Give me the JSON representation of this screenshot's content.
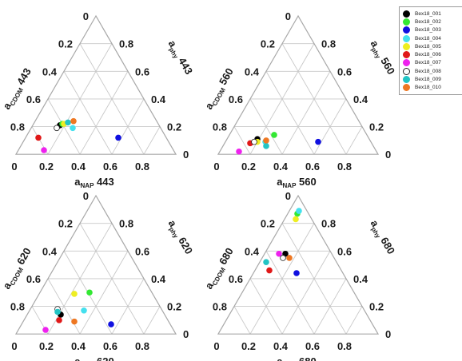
{
  "chart_data": [
    {
      "type": "ternary-scatter",
      "wavelength": "443",
      "axes": {
        "left": "a_CDOM 443",
        "right": "a_phy 443",
        "bottom": "a_NAP 443"
      },
      "left_ticks": [
        "0",
        "0.2",
        "0.4",
        "0.6",
        "0.8"
      ],
      "right_ticks": [
        "0.8",
        "0.6",
        "0.4",
        "0.2",
        "0"
      ],
      "bottom_ticks": [
        "0",
        "0.2",
        "0.4",
        "0.6",
        "0.8"
      ],
      "points": [
        {
          "series": "Bex18_001",
          "cdom": 0.62,
          "nap": 0.17,
          "phy": 0.21
        },
        {
          "series": "Bex18_002",
          "cdom": 0.6,
          "nap": 0.18,
          "phy": 0.22
        },
        {
          "series": "Bex18_003",
          "cdom": 0.3,
          "nap": 0.58,
          "phy": 0.12
        },
        {
          "series": "Bex18_004",
          "cdom": 0.55,
          "nap": 0.26,
          "phy": 0.19
        },
        {
          "series": "Bex18_005",
          "cdom": 0.59,
          "nap": 0.19,
          "phy": 0.22
        },
        {
          "series": "Bex18_006",
          "cdom": 0.8,
          "nap": 0.08,
          "phy": 0.12
        },
        {
          "series": "Bex18_007",
          "cdom": 0.81,
          "nap": 0.16,
          "phy": 0.03
        },
        {
          "series": "Bex18_008",
          "cdom": 0.65,
          "nap": 0.16,
          "phy": 0.19
        },
        {
          "series": "Bex18_009",
          "cdom": 0.56,
          "nap": 0.21,
          "phy": 0.23
        },
        {
          "series": "Bex18_010",
          "cdom": 0.52,
          "nap": 0.24,
          "phy": 0.24
        }
      ]
    },
    {
      "type": "ternary-scatter",
      "wavelength": "560",
      "axes": {
        "left": "a_CDOM 560",
        "right": "a_phy 560",
        "bottom": "a_NAP 560"
      },
      "left_ticks": [
        "0",
        "0.2",
        "0.4",
        "0.6",
        "0.8"
      ],
      "right_ticks": [
        "0.8",
        "0.6",
        "0.4",
        "0.2",
        "0"
      ],
      "bottom_ticks": [
        "0",
        "0.2",
        "0.4",
        "0.6",
        "0.8"
      ],
      "points": [
        {
          "series": "Bex18_001",
          "cdom": 0.7,
          "nap": 0.19,
          "phy": 0.11
        },
        {
          "series": "Bex18_002",
          "cdom": 0.58,
          "nap": 0.28,
          "phy": 0.14
        },
        {
          "series": "Bex18_003",
          "cdom": 0.33,
          "nap": 0.58,
          "phy": 0.09
        },
        {
          "series": "Bex18_004",
          "cdom": 0.66,
          "nap": 0.25,
          "phy": 0.09
        },
        {
          "series": "Bex18_005",
          "cdom": 0.71,
          "nap": 0.2,
          "phy": 0.09
        },
        {
          "series": "Bex18_006",
          "cdom": 0.76,
          "nap": 0.16,
          "phy": 0.08
        },
        {
          "series": "Bex18_007",
          "cdom": 0.86,
          "nap": 0.12,
          "phy": 0.02
        },
        {
          "series": "Bex18_008",
          "cdom": 0.73,
          "nap": 0.18,
          "phy": 0.09
        },
        {
          "series": "Bex18_009",
          "cdom": 0.67,
          "nap": 0.27,
          "phy": 0.06
        },
        {
          "series": "Bex18_010",
          "cdom": 0.65,
          "nap": 0.25,
          "phy": 0.1
        }
      ]
    },
    {
      "type": "ternary-scatter",
      "wavelength": "620",
      "axes": {
        "left": "a_CDOM 620",
        "right": "a_phy 620",
        "bottom": "a_NAP 620"
      },
      "left_ticks": [
        "0",
        "0.2",
        "0.4",
        "0.6",
        "0.8"
      ],
      "right_ticks": [
        "0.8",
        "0.6",
        "0.4",
        "0.2",
        "0"
      ],
      "bottom_ticks": [
        "0",
        "0.2",
        "0.4",
        "0.6",
        "0.8"
      ],
      "points": [
        {
          "series": "Bex18_001",
          "cdom": 0.65,
          "nap": 0.21,
          "phy": 0.14
        },
        {
          "series": "Bex18_002",
          "cdom": 0.39,
          "nap": 0.31,
          "phy": 0.3
        },
        {
          "series": "Bex18_003",
          "cdom": 0.37,
          "nap": 0.56,
          "phy": 0.07
        },
        {
          "series": "Bex18_004",
          "cdom": 0.49,
          "nap": 0.34,
          "phy": 0.17
        },
        {
          "series": "Bex18_005",
          "cdom": 0.49,
          "nap": 0.22,
          "phy": 0.29
        },
        {
          "series": "Bex18_006",
          "cdom": 0.68,
          "nap": 0.22,
          "phy": 0.1
        },
        {
          "series": "Bex18_007",
          "cdom": 0.8,
          "nap": 0.17,
          "phy": 0.03
        },
        {
          "series": "Bex18_008",
          "cdom": 0.65,
          "nap": 0.17,
          "phy": 0.18
        },
        {
          "series": "Bex18_009",
          "cdom": 0.66,
          "nap": 0.18,
          "phy": 0.16
        },
        {
          "series": "Bex18_010",
          "cdom": 0.59,
          "nap": 0.32,
          "phy": 0.09
        }
      ]
    },
    {
      "type": "ternary-scatter",
      "wavelength": "680",
      "axes": {
        "left": "a_CDOM 680",
        "right": "a_phy 680",
        "bottom": "a_NAP 680"
      },
      "left_ticks": [
        "0",
        "0.2",
        "0.4",
        "0.6",
        "0.8"
      ],
      "right_ticks": [
        "0.8",
        "0.6",
        "0.4",
        "0.2",
        "0"
      ],
      "bottom_ticks": [
        "0",
        "0.2",
        "0.4",
        "0.6",
        "0.8"
      ],
      "points": [
        {
          "series": "Bex18_001",
          "cdom": 0.29,
          "nap": 0.13,
          "phy": 0.58
        },
        {
          "series": "Bex18_002",
          "cdom": 0.07,
          "nap": 0.06,
          "phy": 0.87
        },
        {
          "series": "Bex18_003",
          "cdom": 0.29,
          "nap": 0.27,
          "phy": 0.44
        },
        {
          "series": "Bex18_004",
          "cdom": 0.05,
          "nap": 0.06,
          "phy": 0.89
        },
        {
          "series": "Bex18_005",
          "cdom": 0.1,
          "nap": 0.07,
          "phy": 0.83
        },
        {
          "series": "Bex18_006",
          "cdom": 0.45,
          "nap": 0.09,
          "phy": 0.46
        },
        {
          "series": "Bex18_007",
          "cdom": 0.33,
          "nap": 0.09,
          "phy": 0.58
        },
        {
          "series": "Bex18_008",
          "cdom": 0.32,
          "nap": 0.13,
          "phy": 0.55
        },
        {
          "series": "Bex18_009",
          "cdom": 0.44,
          "nap": 0.04,
          "phy": 0.52
        },
        {
          "series": "Bex18_010",
          "cdom": 0.28,
          "nap": 0.17,
          "phy": 0.55
        }
      ]
    }
  ],
  "legend": [
    {
      "name": "Bex18_001",
      "color": "#000000"
    },
    {
      "name": "Bex18_002",
      "color": "#33e833"
    },
    {
      "name": "Bex18_003",
      "color": "#1010e0"
    },
    {
      "name": "Bex18_004",
      "color": "#44e0ee"
    },
    {
      "name": "Bex18_005",
      "color": "#eeee22"
    },
    {
      "name": "Bex18_006",
      "color": "#e01818"
    },
    {
      "name": "Bex18_007",
      "color": "#ee22ee"
    },
    {
      "name": "Bex18_008",
      "color": "#ffffff",
      "border": "#222222"
    },
    {
      "name": "Bex18_009",
      "color": "#22c4c4"
    },
    {
      "name": "Bex18_010",
      "color": "#ee7722"
    }
  ]
}
